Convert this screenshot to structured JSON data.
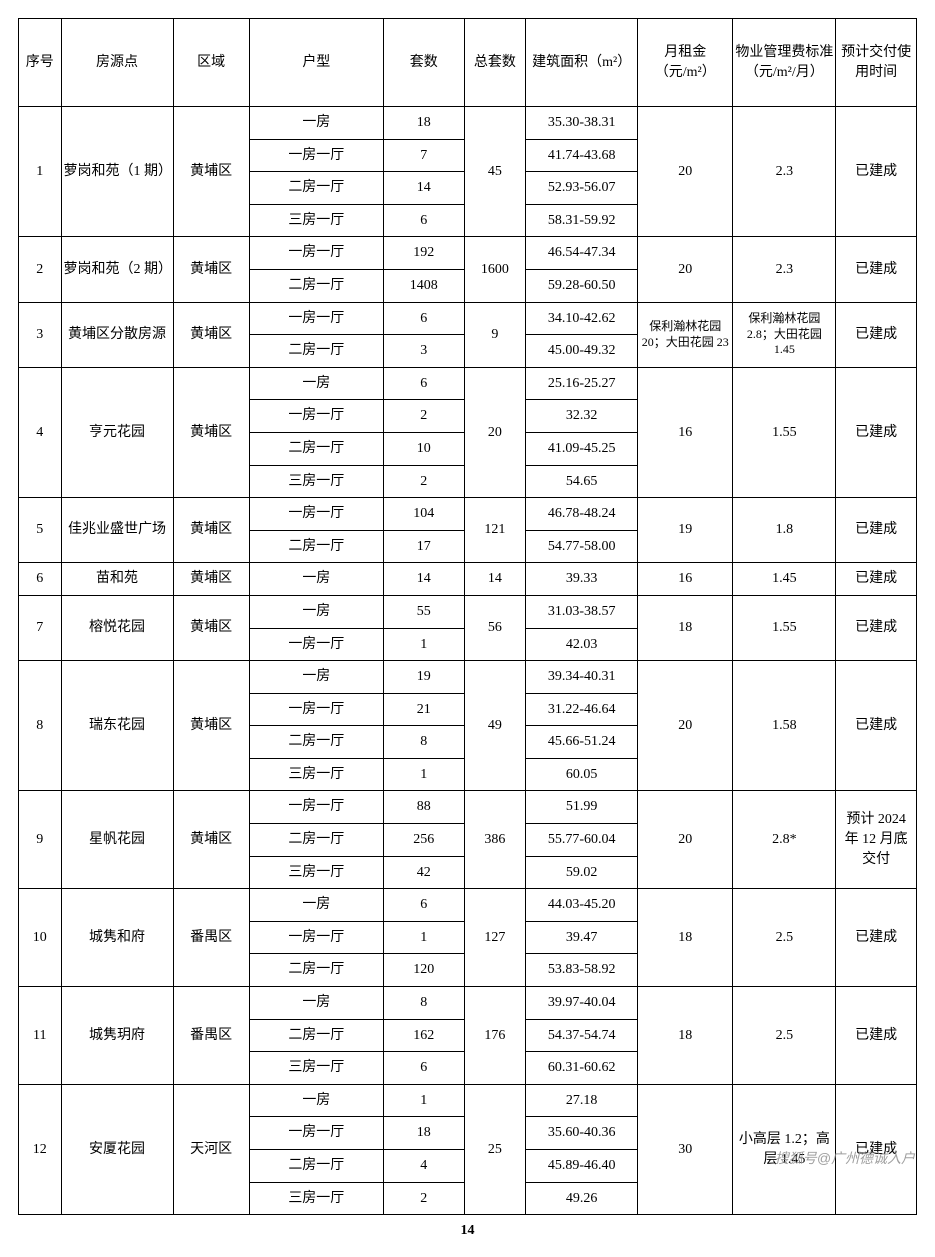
{
  "headers": {
    "seq": "序号",
    "source": "房源点",
    "district": "区域",
    "type": "户型",
    "count": "套数",
    "total": "总套数",
    "area": "建筑面积（m²）",
    "rent": "月租金（元/m²）",
    "fee": "物业管理费标准（元/m²/月）",
    "delivery": "预计交付使用时间"
  },
  "groups": [
    {
      "seq": "1",
      "source": "萝岗和苑（1 期）",
      "district": "黄埔区",
      "total": "45",
      "rent": "20",
      "fee": "2.3",
      "delivery": "已建成",
      "rows": [
        {
          "type": "一房",
          "count": "18",
          "area": "35.30-38.31"
        },
        {
          "type": "一房一厅",
          "count": "7",
          "area": "41.74-43.68"
        },
        {
          "type": "二房一厅",
          "count": "14",
          "area": "52.93-56.07"
        },
        {
          "type": "三房一厅",
          "count": "6",
          "area": "58.31-59.92"
        }
      ]
    },
    {
      "seq": "2",
      "source": "萝岗和苑（2 期）",
      "district": "黄埔区",
      "total": "1600",
      "rent": "20",
      "fee": "2.3",
      "delivery": "已建成",
      "rows": [
        {
          "type": "一房一厅",
          "count": "192",
          "area": "46.54-47.34"
        },
        {
          "type": "二房一厅",
          "count": "1408",
          "area": "59.28-60.50"
        }
      ]
    },
    {
      "seq": "3",
      "source": "黄埔区分散房源",
      "district": "黄埔区",
      "total": "9",
      "rent": "保利瀚林花园 20；大田花园 23",
      "fee": "保利瀚林花园 2.8；大田花园 1.45",
      "delivery": "已建成",
      "small": true,
      "rows": [
        {
          "type": "一房一厅",
          "count": "6",
          "area": "34.10-42.62"
        },
        {
          "type": "二房一厅",
          "count": "3",
          "area": "45.00-49.32"
        }
      ]
    },
    {
      "seq": "4",
      "source": "亨元花园",
      "district": "黄埔区",
      "total": "20",
      "rent": "16",
      "fee": "1.55",
      "delivery": "已建成",
      "rows": [
        {
          "type": "一房",
          "count": "6",
          "area": "25.16-25.27"
        },
        {
          "type": "一房一厅",
          "count": "2",
          "area": "32.32"
        },
        {
          "type": "二房一厅",
          "count": "10",
          "area": "41.09-45.25"
        },
        {
          "type": "三房一厅",
          "count": "2",
          "area": "54.65"
        }
      ]
    },
    {
      "seq": "5",
      "source": "佳兆业盛世广场",
      "district": "黄埔区",
      "total": "121",
      "rent": "19",
      "fee": "1.8",
      "delivery": "已建成",
      "rows": [
        {
          "type": "一房一厅",
          "count": "104",
          "area": "46.78-48.24"
        },
        {
          "type": "二房一厅",
          "count": "17",
          "area": "54.77-58.00"
        }
      ]
    },
    {
      "seq": "6",
      "source": "苗和苑",
      "district": "黄埔区",
      "total": "14",
      "rent": "16",
      "fee": "1.45",
      "delivery": "已建成",
      "rows": [
        {
          "type": "一房",
          "count": "14",
          "area": "39.33"
        }
      ]
    },
    {
      "seq": "7",
      "source": "榕悦花园",
      "district": "黄埔区",
      "total": "56",
      "rent": "18",
      "fee": "1.55",
      "delivery": "已建成",
      "rows": [
        {
          "type": "一房",
          "count": "55",
          "area": "31.03-38.57"
        },
        {
          "type": "一房一厅",
          "count": "1",
          "area": "42.03"
        }
      ]
    },
    {
      "seq": "8",
      "source": "瑞东花园",
      "district": "黄埔区",
      "total": "49",
      "rent": "20",
      "fee": "1.58",
      "delivery": "已建成",
      "rows": [
        {
          "type": "一房",
          "count": "19",
          "area": "39.34-40.31"
        },
        {
          "type": "一房一厅",
          "count": "21",
          "area": "31.22-46.64"
        },
        {
          "type": "二房一厅",
          "count": "8",
          "area": "45.66-51.24"
        },
        {
          "type": "三房一厅",
          "count": "1",
          "area": "60.05"
        }
      ]
    },
    {
      "seq": "9",
      "source": "星帆花园",
      "district": "黄埔区",
      "total": "386",
      "rent": "20",
      "fee": "2.8*",
      "delivery": "预计 2024 年 12 月底交付",
      "rows": [
        {
          "type": "一房一厅",
          "count": "88",
          "area": "51.99"
        },
        {
          "type": "二房一厅",
          "count": "256",
          "area": "55.77-60.04"
        },
        {
          "type": "三房一厅",
          "count": "42",
          "area": "59.02"
        }
      ]
    },
    {
      "seq": "10",
      "source": "城隽和府",
      "district": "番禺区",
      "total": "127",
      "rent": "18",
      "fee": "2.5",
      "delivery": "已建成",
      "rows": [
        {
          "type": "一房",
          "count": "6",
          "area": "44.03-45.20"
        },
        {
          "type": "一房一厅",
          "count": "1",
          "area": "39.47"
        },
        {
          "type": "二房一厅",
          "count": "120",
          "area": "53.83-58.92"
        }
      ]
    },
    {
      "seq": "11",
      "source": "城隽玥府",
      "district": "番禺区",
      "total": "176",
      "rent": "18",
      "fee": "2.5",
      "delivery": "已建成",
      "rows": [
        {
          "type": "一房",
          "count": "8",
          "area": "39.97-40.04"
        },
        {
          "type": "二房一厅",
          "count": "162",
          "area": "54.37-54.74"
        },
        {
          "type": "三房一厅",
          "count": "6",
          "area": "60.31-60.62"
        }
      ]
    },
    {
      "seq": "12",
      "source": "安厦花园",
      "district": "天河区",
      "total": "25",
      "rent": "30",
      "fee": "小高层 1.2；高层 1.45",
      "delivery": "已建成",
      "rows": [
        {
          "type": "一房",
          "count": "1",
          "area": "27.18"
        },
        {
          "type": "一房一厅",
          "count": "18",
          "area": "35.60-40.36"
        },
        {
          "type": "二房一厅",
          "count": "4",
          "area": "45.89-46.40"
        },
        {
          "type": "三房一厅",
          "count": "2",
          "area": "49.26"
        }
      ]
    }
  ],
  "page_number": "14",
  "watermark": "搜狐号@广州德诚入户"
}
